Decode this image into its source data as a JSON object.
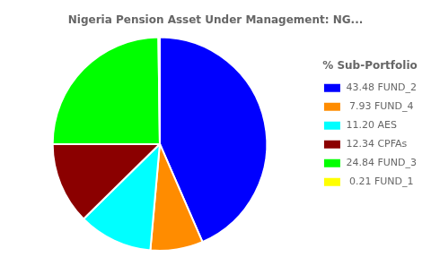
{
  "chart_data": {
    "type": "pie",
    "title": "Nigeria Pension Asset Under Management: NG...",
    "legend_title": "% Sub-Portfolio",
    "categories": [
      "43.48 FUND_2",
      " 7.93 FUND_4",
      "11.20 AES",
      "12.34 CPFAs",
      "24.84 FUND_3",
      " 0.21 FUND_1"
    ],
    "values": [
      43.48,
      7.93,
      11.2,
      12.34,
      24.84,
      0.21
    ],
    "colors": [
      "#0000FF",
      "#FF8C00",
      "#00FFFF",
      "#8B0000",
      "#00FF00",
      "#FFFF00"
    ],
    "legend": "right"
  }
}
